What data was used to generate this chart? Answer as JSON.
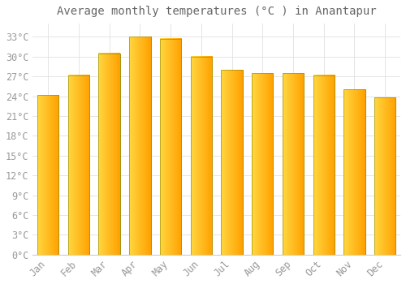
{
  "title": "Average monthly temperatures (°C ) in Anantapur",
  "months": [
    "Jan",
    "Feb",
    "Mar",
    "Apr",
    "May",
    "Jun",
    "Jul",
    "Aug",
    "Sep",
    "Oct",
    "Nov",
    "Dec"
  ],
  "values": [
    24.2,
    27.2,
    30.5,
    33.0,
    32.7,
    30.0,
    28.0,
    27.5,
    27.5,
    27.2,
    25.0,
    23.8
  ],
  "bar_color_left": "#FFD740",
  "bar_color_right": "#FFA000",
  "bar_edge_color": "#888800",
  "background_color": "#FFFFFF",
  "plot_bg_color": "#FFFFFF",
  "grid_color": "#E0E0E0",
  "tick_label_color": "#999999",
  "title_color": "#666666",
  "ylim": [
    0,
    35
  ],
  "yticks": [
    0,
    3,
    6,
    9,
    12,
    15,
    18,
    21,
    24,
    27,
    30,
    33
  ],
  "ytick_labels": [
    "0°C",
    "3°C",
    "6°C",
    "9°C",
    "12°C",
    "15°C",
    "18°C",
    "21°C",
    "24°C",
    "27°C",
    "30°C",
    "33°C"
  ],
  "title_fontsize": 10,
  "tick_fontsize": 8.5,
  "bar_width": 0.7
}
